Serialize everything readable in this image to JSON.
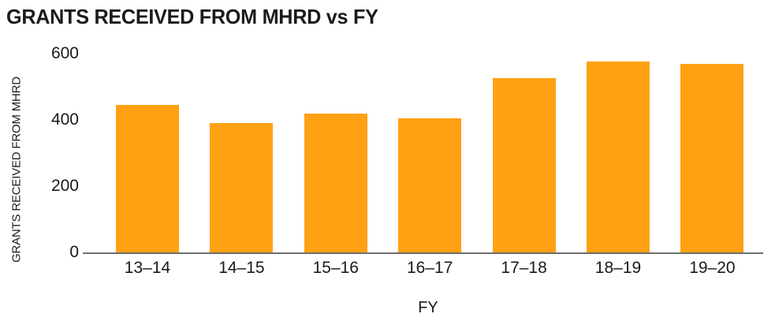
{
  "title": "GRANTS RECEIVED FROM MHRD vs FY",
  "colors": {
    "bar": "#FFA113",
    "axis": "#6E6E6E",
    "text": "#1A1A1A"
  },
  "chart_data": {
    "type": "bar",
    "title": "GRANTS RECEIVED FROM MHRD vs FY",
    "categories": [
      "13–14",
      "14–15",
      "15–16",
      "16–17",
      "17–18",
      "18–19",
      "19–20"
    ],
    "values": [
      445,
      390,
      420,
      405,
      525,
      575,
      570
    ],
    "xlabel": "FY",
    "ylabel": "GRANTS RECEIVED FROM MHRD",
    "ylim": [
      0,
      600
    ],
    "yticks": [
      0,
      200,
      400,
      600
    ],
    "grid": false,
    "legend": false,
    "bar_color": "#FFA113"
  }
}
